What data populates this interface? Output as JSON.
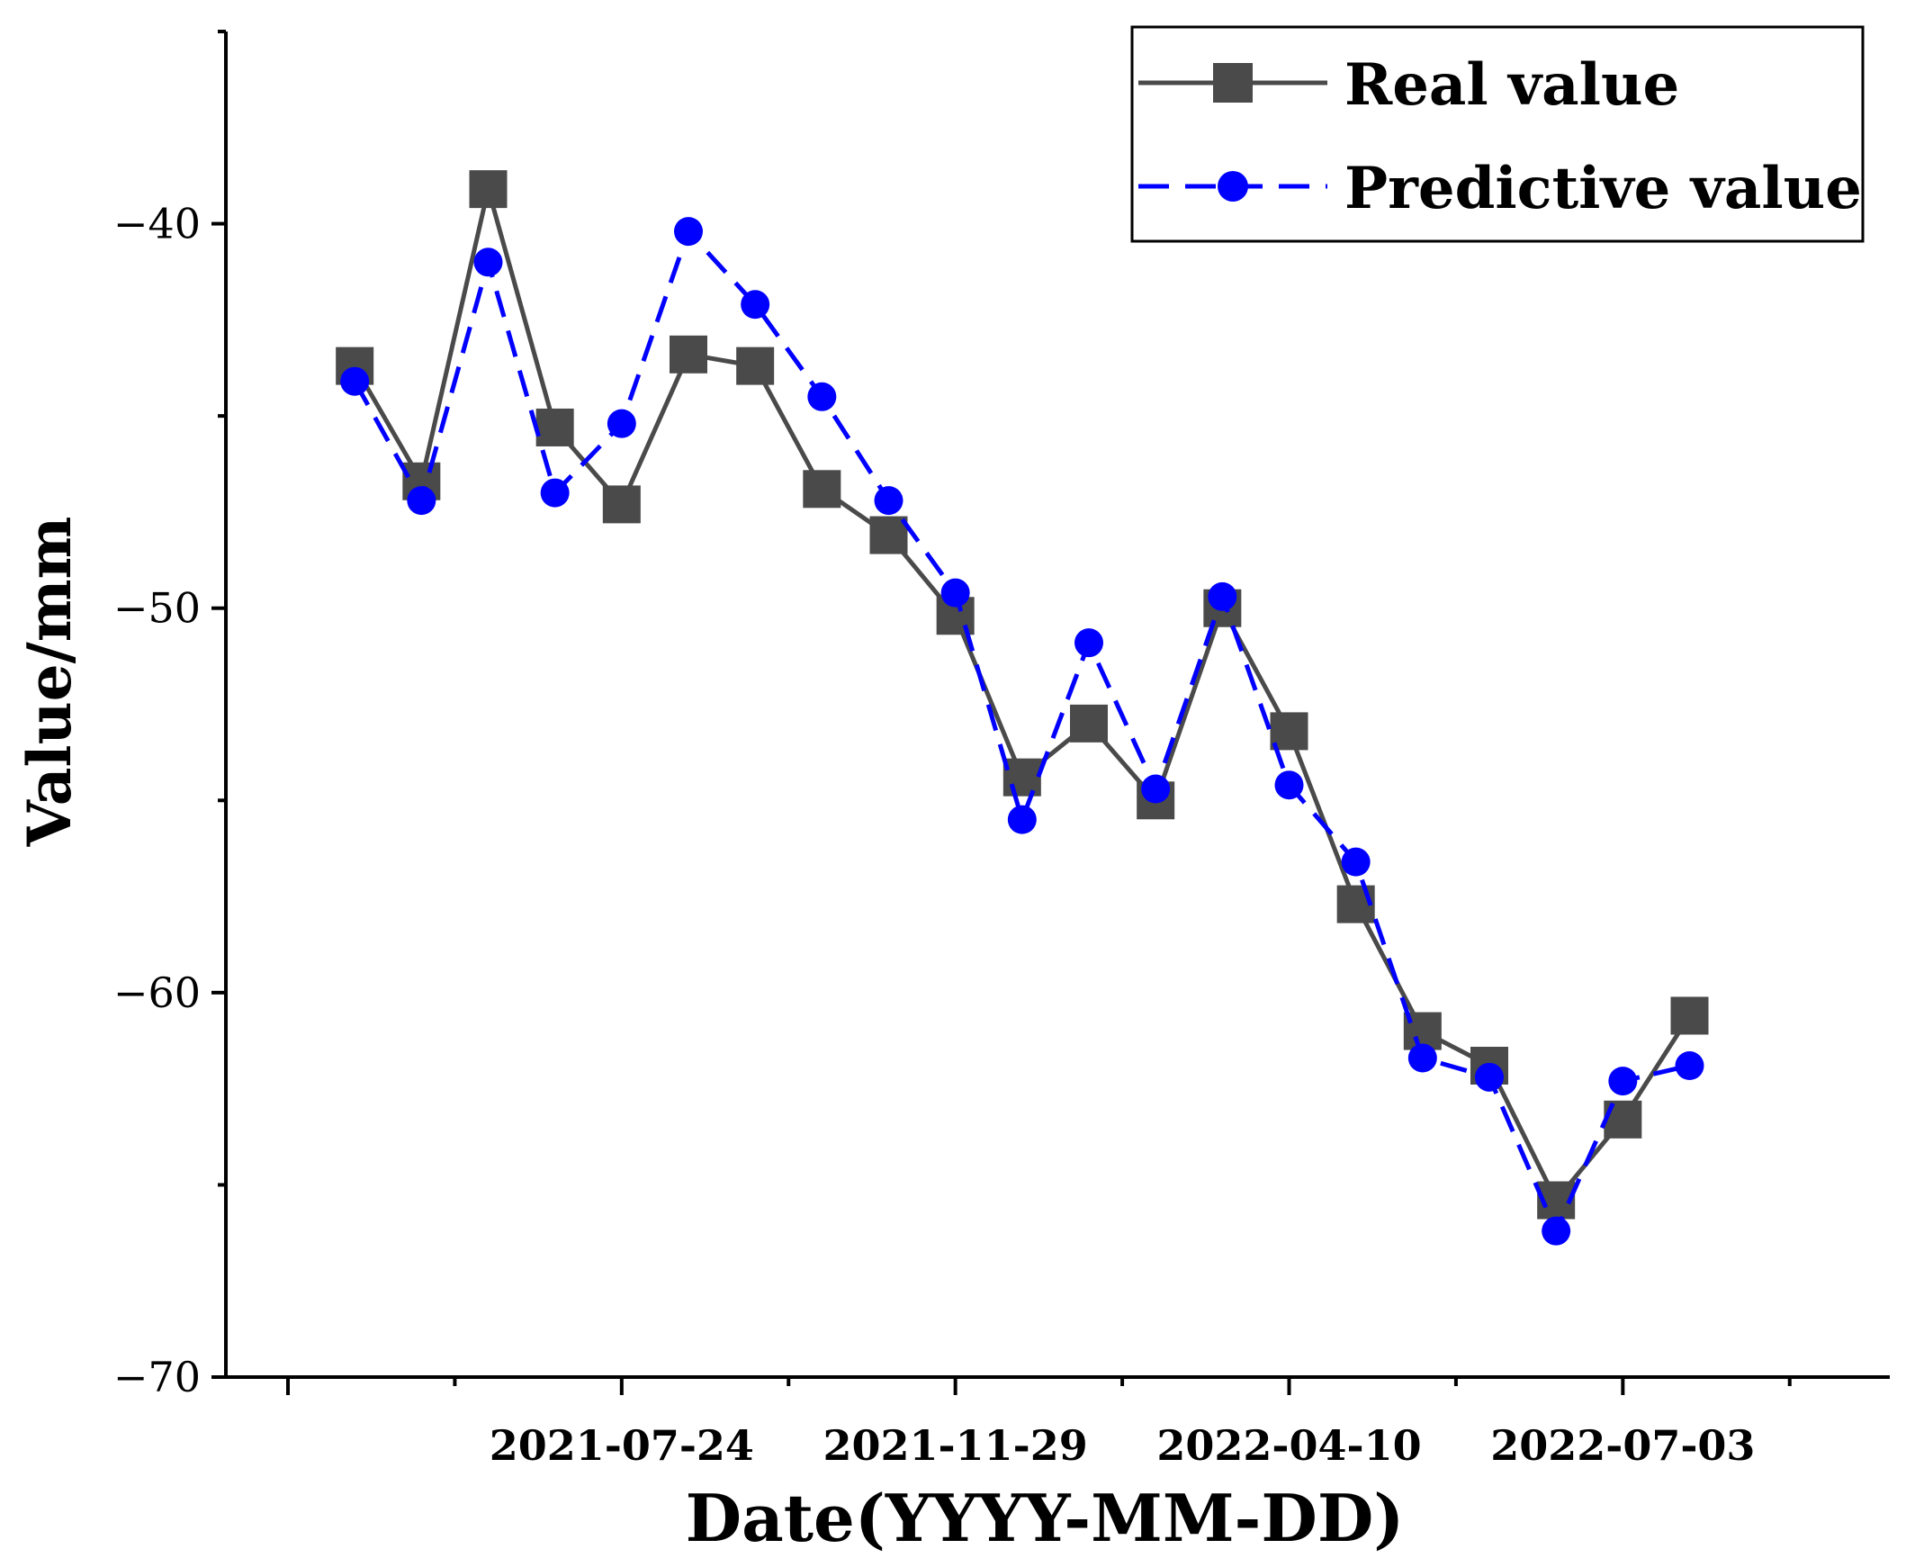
{
  "chart_data": {
    "type": "line",
    "xlabel": "Date(YYYY-MM-DD)",
    "ylabel": "Value/mm",
    "ylim": [
      -70,
      -35
    ],
    "yticks": [
      -40,
      -50,
      -60,
      -70
    ],
    "xlim": [
      0,
      25
    ],
    "xticks": [
      {
        "x": 5,
        "label": "2021-07-24"
      },
      {
        "x": 10,
        "label": "2021-11-29"
      },
      {
        "x": 15,
        "label": "2022-04-10"
      },
      {
        "x": 20,
        "label": "2022-07-03"
      }
    ],
    "x": [
      1,
      2,
      3,
      4,
      5,
      6,
      7,
      8,
      9,
      10,
      11,
      12,
      13,
      14,
      15,
      16,
      17,
      18,
      19,
      20,
      21
    ],
    "legend_position": "top-right",
    "series": [
      {
        "name": "Real value",
        "color": "#4a4a4a",
        "marker": "square",
        "dash": "solid",
        "values": [
          -43.7,
          -46.7,
          -39.1,
          -45.3,
          -47.3,
          -43.4,
          -43.7,
          -46.9,
          -48.1,
          -50.2,
          -54.4,
          -53.0,
          -55.0,
          -50.0,
          -53.2,
          -57.7,
          -61.0,
          -61.9,
          -65.4,
          -63.3,
          -60.6
        ]
      },
      {
        "name": "Predictive value",
        "color": "#0000ff",
        "marker": "circle",
        "dash": "dashed",
        "values": [
          -44.1,
          -47.2,
          -41.0,
          -47.0,
          -45.2,
          -40.2,
          -42.1,
          -44.5,
          -47.2,
          -49.6,
          -55.5,
          -50.9,
          -54.7,
          -49.7,
          -54.6,
          -56.6,
          -61.7,
          -62.2,
          -66.2,
          -62.3,
          -61.9
        ]
      }
    ]
  }
}
